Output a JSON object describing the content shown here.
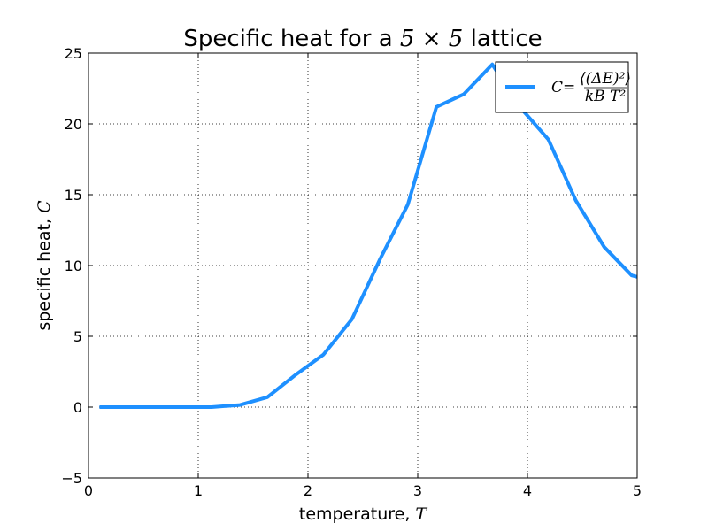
{
  "chart_data": {
    "type": "line",
    "title": "Specific heat for a 5 × 5 lattice",
    "title_parts": {
      "prefix": "Specific heat for a ",
      "math": "5 × 5",
      "suffix": " lattice"
    },
    "xlabel": "temperature, T",
    "xlabel_parts": {
      "text": "temperature, ",
      "math": "T"
    },
    "ylabel": "specific heat, C",
    "ylabel_parts": {
      "text": "specific heat, ",
      "math": "C"
    },
    "xlim": [
      0,
      5
    ],
    "ylim": [
      -5,
      25
    ],
    "xticks": [
      "0",
      "1",
      "2",
      "3",
      "4",
      "5"
    ],
    "yticks": [
      "−5",
      "0",
      "5",
      "10",
      "15",
      "20",
      "25"
    ],
    "grid": true,
    "legend_position": "top-right",
    "series": [
      {
        "name": "C = ⟨(ΔE)²⟩ / (kB T²)",
        "color": "#1e90ff",
        "x": [
          0.1,
          0.36,
          0.61,
          0.87,
          1.12,
          1.38,
          1.63,
          1.89,
          2.14,
          2.4,
          2.66,
          2.91,
          3.17,
          3.42,
          3.68,
          3.93,
          4.19,
          4.44,
          4.7,
          4.95,
          5.0
        ],
        "y": [
          0.0,
          0.0,
          0.0,
          0.0,
          0.0,
          0.15,
          0.7,
          2.3,
          3.7,
          6.2,
          10.5,
          14.3,
          21.2,
          22.1,
          24.2,
          21.2,
          18.9,
          14.6,
          11.3,
          9.3,
          9.2
        ]
      }
    ]
  }
}
